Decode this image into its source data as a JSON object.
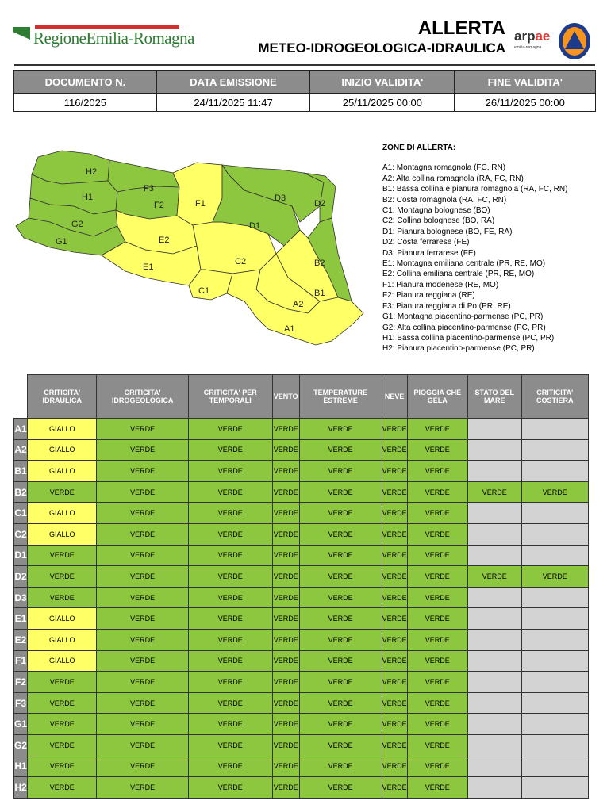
{
  "header": {
    "brand": "RegioneEmilia-Romagna",
    "title": "ALLERTA",
    "subtitle": "METEO-IDROGEOLOGICA-IDRAULICA",
    "arpae": "arpae",
    "arpae_sub": "emilia-romagna"
  },
  "info": {
    "headers": [
      "DOCUMENTO N.",
      "DATA EMISSIONE",
      "INIZIO VALIDITA'",
      "FINE VALIDITA'"
    ],
    "values": [
      "116/2025",
      "24/11/2025 11:47",
      "25/11/2025 00:00",
      "26/11/2025 00:00"
    ]
  },
  "zones_title": "ZONE DI ALLERTA:",
  "zones": [
    "A1: Montagna romagnola (FC, RN)",
    "A2: Alta collina romagnola (RA, FC, RN)",
    "B1: Bassa collina e pianura romagnola (RA, FC, RN)",
    "B2: Costa romagnola (RA, FC, RN)",
    "C1: Montagna bolognese (BO)",
    "C2: Collina bolognese (BO, RA)",
    "D1: Pianura bolognese (BO, FE, RA)",
    "D2: Costa ferrarese (FE)",
    "D3: Pianura ferrarese (FE)",
    "E1: Montagna emiliana centrale (PR, RE, MO)",
    "E2: Collina emiliana centrale (PR, RE, MO)",
    "F1: Pianura modenese (RE, MO)",
    "F2: Pianura reggiana (RE)",
    "F3: Pianura reggiana di Po (PR, RE)",
    "G1: Montagna piacentino-parmense (PC, PR)",
    "G2: Alta collina piacentino-parmense (PC, PR)",
    "H1: Bassa collina piacentino-parmense (PC, PR)",
    "H2: Pianura piacentino-parmense (PC, PR)"
  ],
  "colors": {
    "VERDE": "#8dc63f",
    "GIALLO": "#ffff66"
  },
  "map_labels": {
    "H2": "H2",
    "H1": "H1",
    "G2": "G2",
    "G1": "G1",
    "F3": "F3",
    "F2": "F2",
    "F1": "F1",
    "E2": "E2",
    "E1": "E1",
    "C2": "C2",
    "C1": "C1",
    "D1": "D1",
    "D2": "D2",
    "D3": "D3",
    "B2": "B2",
    "B1": "B1",
    "A2": "A2",
    "A1": "A1"
  },
  "columns": [
    "CRITICITA' IDRAULICA",
    "CRITICITA' IDROGEOLOGICA",
    "CRITICITA' PER TEMPORALI",
    "VENTO",
    "TEMPERATURE ESTREME",
    "NEVE",
    "PIOGGIA CHE GELA",
    "STATO DEL MARE",
    "CRITICITA' COSTIERA"
  ],
  "rows": [
    {
      "zone": "A1",
      "v": [
        "GIALLO",
        "VERDE",
        "VERDE",
        "VERDE",
        "VERDE",
        "VERDE",
        "VERDE",
        "",
        ""
      ]
    },
    {
      "zone": "A2",
      "v": [
        "GIALLO",
        "VERDE",
        "VERDE",
        "VERDE",
        "VERDE",
        "VERDE",
        "VERDE",
        "",
        ""
      ]
    },
    {
      "zone": "B1",
      "v": [
        "GIALLO",
        "VERDE",
        "VERDE",
        "VERDE",
        "VERDE",
        "VERDE",
        "VERDE",
        "",
        ""
      ]
    },
    {
      "zone": "B2",
      "v": [
        "VERDE",
        "VERDE",
        "VERDE",
        "VERDE",
        "VERDE",
        "VERDE",
        "VERDE",
        "VERDE",
        "VERDE"
      ]
    },
    {
      "zone": "C1",
      "v": [
        "GIALLO",
        "VERDE",
        "VERDE",
        "VERDE",
        "VERDE",
        "VERDE",
        "VERDE",
        "",
        ""
      ]
    },
    {
      "zone": "C2",
      "v": [
        "GIALLO",
        "VERDE",
        "VERDE",
        "VERDE",
        "VERDE",
        "VERDE",
        "VERDE",
        "",
        ""
      ]
    },
    {
      "zone": "D1",
      "v": [
        "VERDE",
        "VERDE",
        "VERDE",
        "VERDE",
        "VERDE",
        "VERDE",
        "VERDE",
        "",
        ""
      ]
    },
    {
      "zone": "D2",
      "v": [
        "VERDE",
        "VERDE",
        "VERDE",
        "VERDE",
        "VERDE",
        "VERDE",
        "VERDE",
        "VERDE",
        "VERDE"
      ]
    },
    {
      "zone": "D3",
      "v": [
        "VERDE",
        "VERDE",
        "VERDE",
        "VERDE",
        "VERDE",
        "VERDE",
        "VERDE",
        "",
        ""
      ]
    },
    {
      "zone": "E1",
      "v": [
        "GIALLO",
        "VERDE",
        "VERDE",
        "VERDE",
        "VERDE",
        "VERDE",
        "VERDE",
        "",
        ""
      ]
    },
    {
      "zone": "E2",
      "v": [
        "GIALLO",
        "VERDE",
        "VERDE",
        "VERDE",
        "VERDE",
        "VERDE",
        "VERDE",
        "",
        ""
      ]
    },
    {
      "zone": "F1",
      "v": [
        "GIALLO",
        "VERDE",
        "VERDE",
        "VERDE",
        "VERDE",
        "VERDE",
        "VERDE",
        "",
        ""
      ]
    },
    {
      "zone": "F2",
      "v": [
        "VERDE",
        "VERDE",
        "VERDE",
        "VERDE",
        "VERDE",
        "VERDE",
        "VERDE",
        "",
        ""
      ]
    },
    {
      "zone": "F3",
      "v": [
        "VERDE",
        "VERDE",
        "VERDE",
        "VERDE",
        "VERDE",
        "VERDE",
        "VERDE",
        "",
        ""
      ]
    },
    {
      "zone": "G1",
      "v": [
        "VERDE",
        "VERDE",
        "VERDE",
        "VERDE",
        "VERDE",
        "VERDE",
        "VERDE",
        "",
        ""
      ]
    },
    {
      "zone": "G2",
      "v": [
        "VERDE",
        "VERDE",
        "VERDE",
        "VERDE",
        "VERDE",
        "VERDE",
        "VERDE",
        "",
        ""
      ]
    },
    {
      "zone": "H1",
      "v": [
        "VERDE",
        "VERDE",
        "VERDE",
        "VERDE",
        "VERDE",
        "VERDE",
        "VERDE",
        "",
        ""
      ]
    },
    {
      "zone": "H2",
      "v": [
        "VERDE",
        "VERDE",
        "VERDE",
        "VERDE",
        "VERDE",
        "VERDE",
        "VERDE",
        "",
        ""
      ]
    }
  ]
}
